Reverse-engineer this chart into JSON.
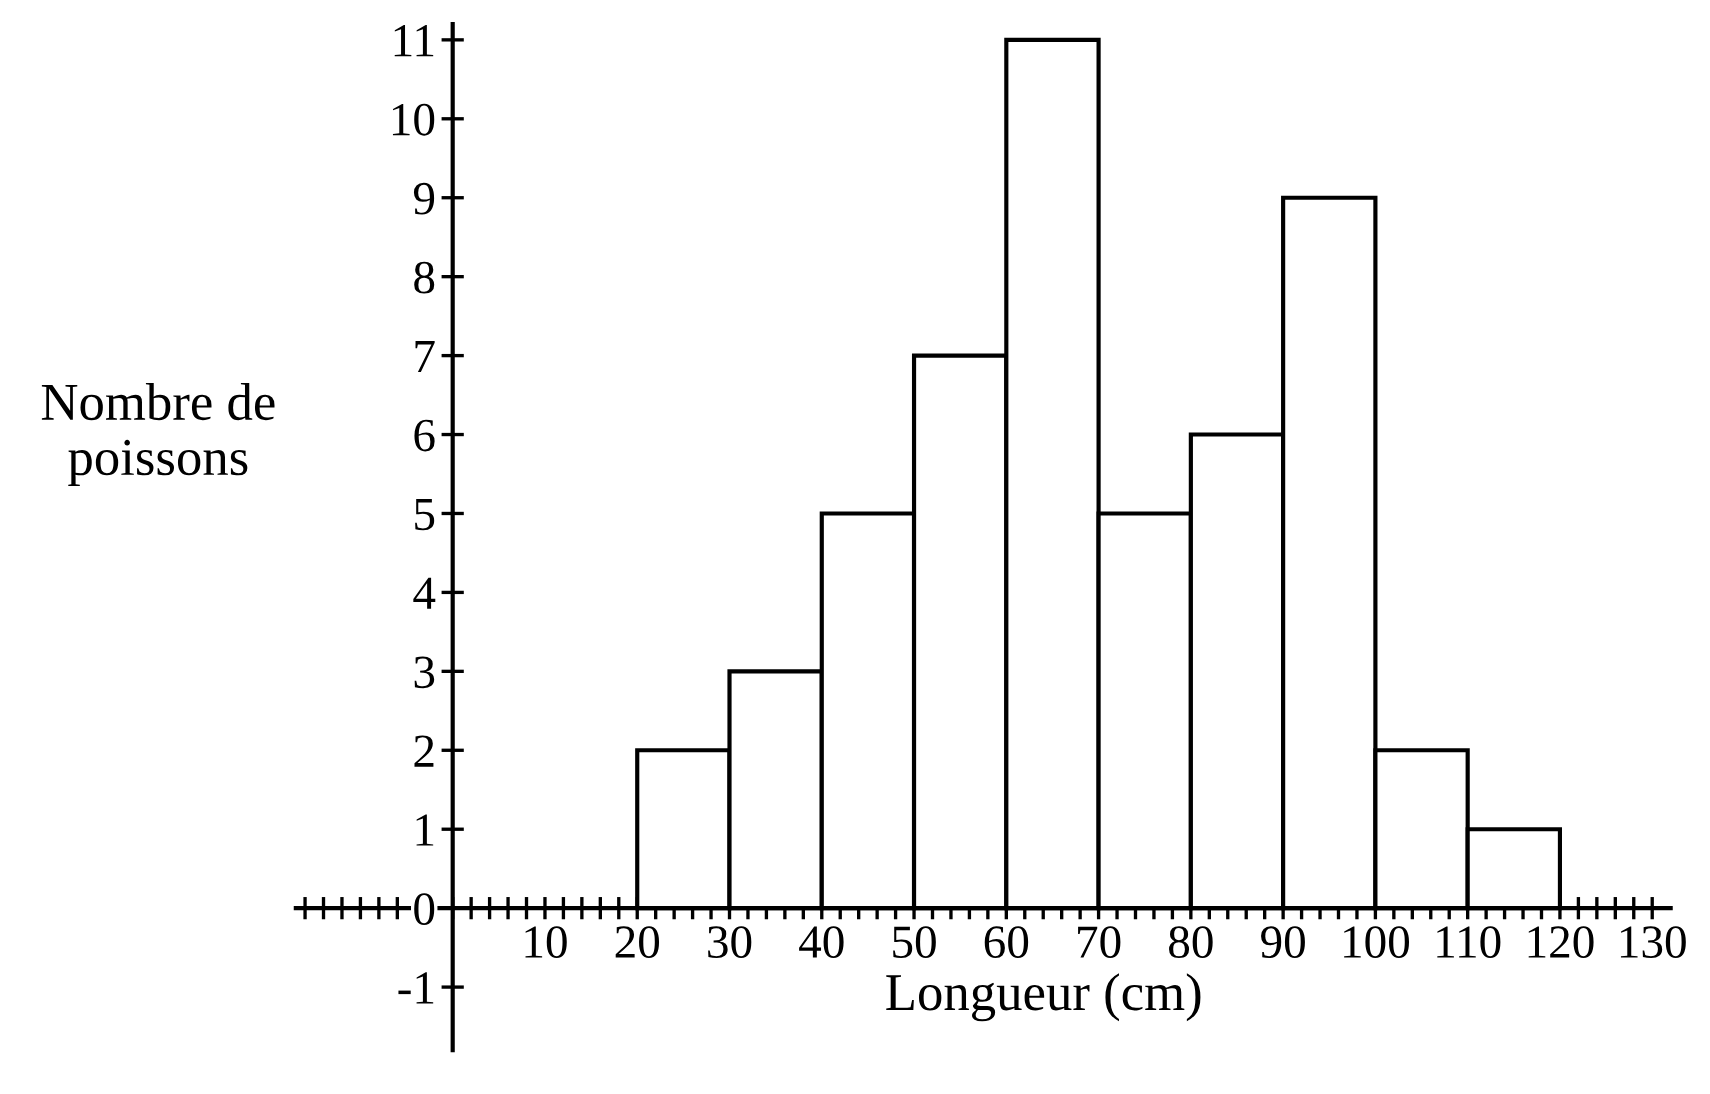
{
  "chart_data": {
    "type": "histogram",
    "xlabel": "Longueur (cm)",
    "ylabel": "Nombre de\npoissons",
    "bins": [
      20,
      30,
      40,
      50,
      60,
      70,
      80,
      90,
      100,
      110,
      120
    ],
    "values": [
      2,
      3,
      5,
      7,
      11,
      5,
      6,
      9,
      2,
      1
    ],
    "color": "#ffffff",
    "xlim": [
      -17,
      132
    ],
    "ylim": [
      -1.8,
      11.2
    ],
    "xticks": [
      {
        "value": -16,
        "label": null
      },
      {
        "value": -14,
        "label": null
      },
      {
        "value": -12,
        "label": null
      },
      {
        "value": -10,
        "label": null
      },
      {
        "value": -8,
        "label": null
      },
      {
        "value": -6,
        "label": null
      },
      {
        "value": -4,
        "label": null
      },
      {
        "value": -2,
        "label": null
      },
      {
        "value": 0,
        "label": null
      },
      {
        "value": 2,
        "label": null
      },
      {
        "value": 4,
        "label": null
      },
      {
        "value": 6,
        "label": null
      },
      {
        "value": 8,
        "label": null
      },
      10,
      {
        "value": 12,
        "label": null
      },
      {
        "value": 14,
        "label": null
      },
      {
        "value": 16,
        "label": null
      },
      {
        "value": 18,
        "label": null
      },
      20,
      {
        "value": 22,
        "label": null
      },
      {
        "value": 24,
        "label": null
      },
      {
        "value": 26,
        "label": null
      },
      {
        "value": 28,
        "label": null
      },
      30,
      {
        "value": 32,
        "label": null
      },
      {
        "value": 34,
        "label": null
      },
      {
        "value": 36,
        "label": null
      },
      {
        "value": 38,
        "label": null
      },
      40,
      {
        "value": 42,
        "label": null
      },
      {
        "value": 44,
        "label": null
      },
      {
        "value": 46,
        "label": null
      },
      {
        "value": 48,
        "label": null
      },
      50,
      {
        "value": 52,
        "label": null
      },
      {
        "value": 54,
        "label": null
      },
      {
        "value": 56,
        "label": null
      },
      {
        "value": 58,
        "label": null
      },
      60,
      {
        "value": 62,
        "label": null
      },
      {
        "value": 64,
        "label": null
      },
      {
        "value": 66,
        "label": null
      },
      {
        "value": 68,
        "label": null
      },
      70,
      {
        "value": 72,
        "label": null
      },
      {
        "value": 74,
        "label": null
      },
      {
        "value": 76,
        "label": null
      },
      {
        "value": 78,
        "label": null
      },
      80,
      {
        "value": 82,
        "label": null
      },
      {
        "value": 84,
        "label": null
      },
      {
        "value": 86,
        "label": null
      },
      {
        "value": 88,
        "label": null
      },
      90,
      {
        "value": 92,
        "label": null
      },
      {
        "value": 94,
        "label": null
      },
      {
        "value": 96,
        "label": null
      },
      {
        "value": 98,
        "label": null
      },
      100,
      {
        "value": 102,
        "label": null
      },
      {
        "value": 104,
        "label": null
      },
      {
        "value": 106,
        "label": null
      },
      {
        "value": 108,
        "label": null
      },
      110,
      {
        "value": 112,
        "label": null
      },
      {
        "value": 114,
        "label": null
      },
      {
        "value": 116,
        "label": null
      },
      {
        "value": 118,
        "label": null
      },
      120,
      {
        "value": 122,
        "label": null
      },
      {
        "value": 124,
        "label": null
      },
      {
        "value": 126,
        "label": null
      },
      {
        "value": 128,
        "label": null
      },
      130
    ],
    "yticks": [
      -1,
      0,
      1,
      2,
      3,
      4,
      5,
      6,
      7,
      8,
      9,
      10,
      11
    ],
    "grid": false,
    "legend": false
  }
}
